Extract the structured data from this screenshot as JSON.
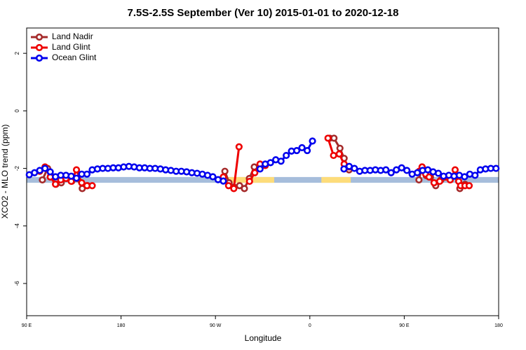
{
  "chart_data": {
    "type": "line",
    "title": "7.5S-2.5S September (Ver 10)   2015-01-01 to 2020-12-18",
    "x_label": "Longitude",
    "y_label": "XCO2 - MLO trend (ppm)",
    "xlim": [
      90,
      540
    ],
    "ylim": [
      -7.12,
      2.88
    ],
    "xticks": [
      {
        "value": 90,
        "label": "90 E"
      },
      {
        "value": 180,
        "label": "180"
      },
      {
        "value": 270,
        "label": "90 W"
      },
      {
        "value": 360,
        "label": "0"
      },
      {
        "value": 450,
        "label": "90 E"
      },
      {
        "value": 540,
        "label": "180"
      }
    ],
    "yticks": [
      2,
      0,
      -2,
      -4,
      -6
    ],
    "legend": "top-left",
    "band": {
      "ylim": [
        -2.5,
        -2.3
      ],
      "color": "#a6bddb"
    },
    "land_bands": {
      "color": "#fddc7a",
      "ranges": [
        [
          282,
          326
        ],
        [
          371,
          399
        ]
      ]
    },
    "series": [
      {
        "name": "Land Nadir",
        "color": "#a52a2a",
        "x": [
          105,
          110,
          113,
          118,
          123,
          128,
          133,
          138,
          143,
          148,
          200,
          279,
          283,
          287.6,
          293,
          297.6,
          302.3,
          307,
          312.3,
          350,
          379,
          383,
          388.7,
          392.7,
          397.4,
          430,
          464,
          467,
          471,
          475,
          480,
          485,
          490,
          498,
          503,
          508
        ],
        "values": [
          -2.4,
          -2.0,
          -2.25,
          -2.55,
          -2.5,
          -2.35,
          -2.45,
          -2.35,
          -2.7,
          -2.6,
          null,
          -2.1,
          -2.5,
          -2.65,
          -2.6,
          -2.7,
          -2.35,
          -1.95,
          -1.9,
          null,
          -0.95,
          -0.95,
          -1.3,
          -1.65,
          -2.05,
          null,
          -2.4,
          -1.95,
          -2.25,
          -2.3,
          -2.6,
          -2.4,
          -2.3,
          -2.25,
          -2.7,
          -2.55
        ]
      },
      {
        "name": "Land Glint",
        "color": "#ee0000",
        "x": [
          102.5,
          107.5,
          112.5,
          117.5,
          122.5,
          127.5,
          132.5,
          137.5,
          142.5,
          147.5,
          152.5,
          200,
          277.5,
          282.5,
          287.5,
          292.5,
          297.5,
          302.5,
          307.5,
          312.5,
          317.5,
          350,
          377.3,
          382.6,
          388,
          392.7,
          397.4,
          430,
          464.3,
          467,
          470.4,
          473.7,
          478.4,
          483.8,
          489.1,
          493.8,
          498.5,
          501.9,
          503.8,
          507.9,
          511.9
        ],
        "values": [
          -2.1,
          -1.95,
          -2.3,
          -2.55,
          -2.4,
          -2.35,
          -2.45,
          -2.05,
          -2.5,
          -2.6,
          -2.6,
          null,
          -2.3,
          -2.6,
          -2.7,
          -1.25,
          null,
          -2.45,
          -2.15,
          -1.85,
          -1.9,
          null,
          -0.95,
          -1.55,
          -1.5,
          -1.85,
          -1.95,
          null,
          -2.1,
          -1.95,
          -2.2,
          -2.3,
          -2.5,
          -2.45,
          -2.3,
          -2.4,
          -2.05,
          -2.45,
          -2.6,
          -2.6,
          -2.6
        ]
      },
      {
        "name": "Ocean Glint",
        "color": "#0000ee",
        "x": [
          92.5,
          97.5,
          102.5,
          107.5,
          112.5,
          117.5,
          122.5,
          127.5,
          132.5,
          137.5,
          142.5,
          147.5,
          152.5,
          157.5,
          162.5,
          167.5,
          172.5,
          177.5,
          182.5,
          187.5,
          192.5,
          197.5,
          202.5,
          207.5,
          212.5,
          217.5,
          222.5,
          227.5,
          232.5,
          237.5,
          242.5,
          247.5,
          252.5,
          257.5,
          262.5,
          267.5,
          272.5,
          277.5,
          295,
          312.5,
          317.5,
          322.5,
          327.5,
          332.5,
          337.5,
          342.5,
          347.5,
          352.5,
          357.5,
          362.5,
          380,
          392.5,
          397.5,
          402.5,
          407.5,
          412.5,
          417.5,
          422.5,
          427.5,
          432.5,
          437.5,
          442.5,
          447.5,
          452.5,
          457.5,
          462.5,
          467.5,
          472.5,
          477.5,
          482.5,
          487.5,
          492.5,
          497.5,
          502.5,
          507.5,
          512.5,
          517.5,
          522.5,
          527.5,
          532.5,
          537.5
        ],
        "values": [
          -2.22,
          -2.15,
          -2.07,
          -2.0,
          -2.12,
          -2.29,
          -2.24,
          -2.24,
          -2.27,
          -2.34,
          -2.2,
          -2.2,
          -2.05,
          -2.02,
          -2.0,
          -2.0,
          -1.98,
          -1.98,
          -1.95,
          -1.93,
          -1.95,
          -1.98,
          -1.98,
          -2.0,
          -2.0,
          -2.02,
          -2.05,
          -2.07,
          -2.1,
          -2.1,
          -2.12,
          -2.15,
          -2.17,
          -2.2,
          -2.24,
          -2.29,
          -2.39,
          -2.44,
          null,
          -2.02,
          -1.85,
          -1.8,
          -1.7,
          -1.75,
          -1.55,
          -1.4,
          -1.38,
          -1.28,
          -1.38,
          -1.05,
          null,
          -2.02,
          -1.93,
          -2.0,
          -2.1,
          -2.07,
          -2.07,
          -2.05,
          -2.07,
          -2.05,
          -2.15,
          -2.05,
          -1.98,
          -2.07,
          -2.2,
          -2.15,
          -2.07,
          -2.05,
          -2.12,
          -2.17,
          -2.27,
          -2.24,
          -2.27,
          -2.24,
          -2.29,
          -2.2,
          -2.24,
          -2.05,
          -2.02,
          -2.0,
          -2.0
        ]
      }
    ]
  }
}
